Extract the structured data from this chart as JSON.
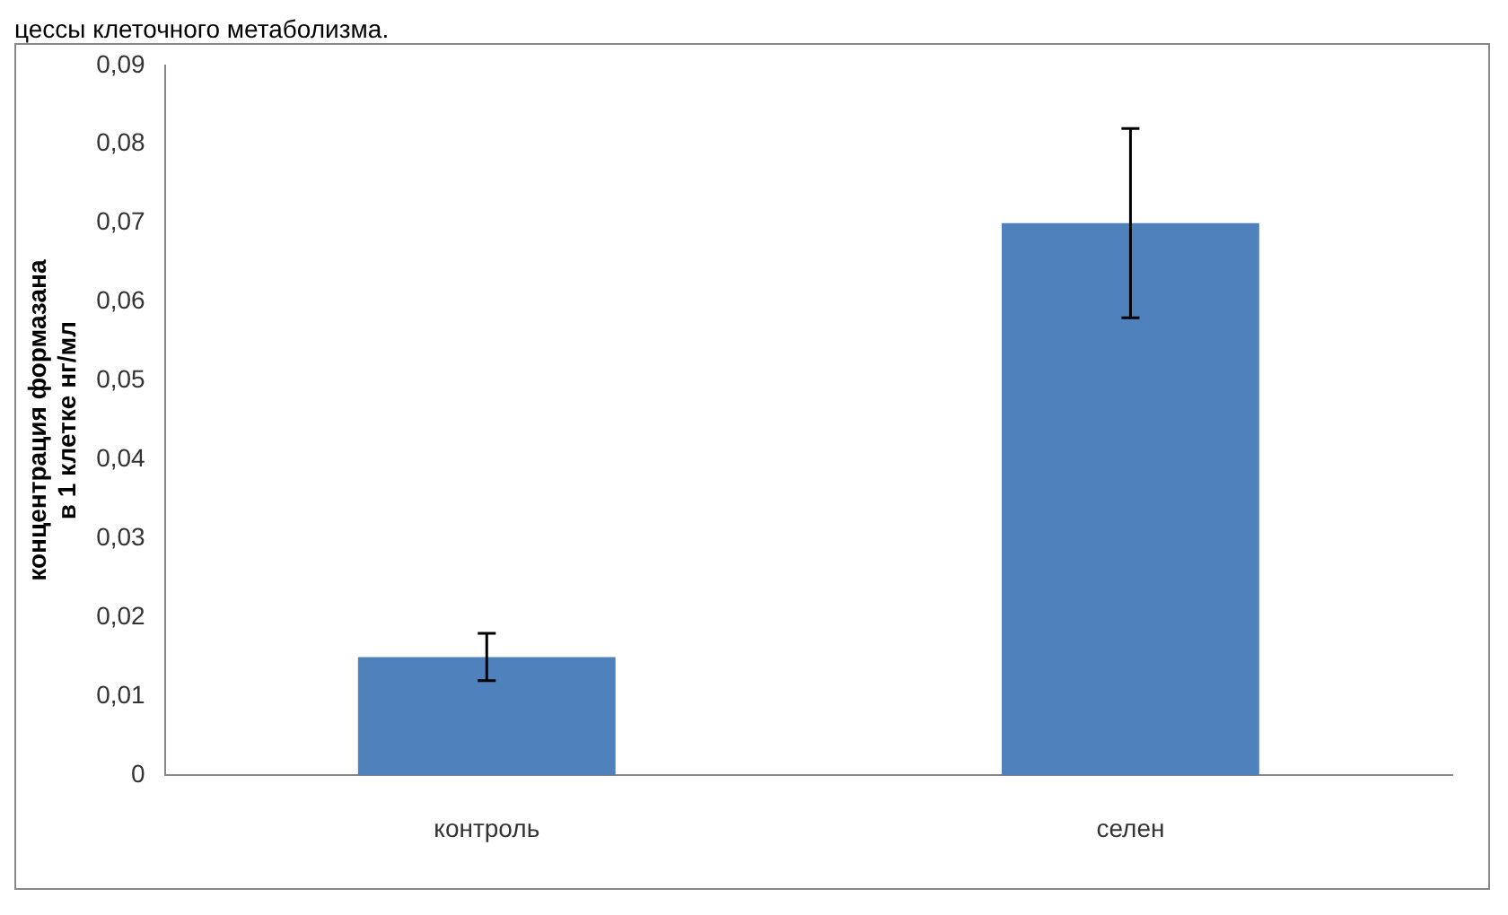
{
  "chart_data": {
    "type": "bar",
    "ylabel": "концентрация формазана в 1 клетке нг/мл",
    "annotations": [
      "цессы клеточного метаболизма."
    ],
    "categories": [
      "контроль",
      "селен"
    ],
    "values": [
      0.015,
      0.07
    ],
    "errors": [
      0.003,
      0.012
    ],
    "color": "#4f81bd",
    "ylim": [
      0,
      0.09
    ],
    "yticks": [
      {
        "value": 0,
        "label": "0"
      },
      {
        "value": 0.01,
        "label": "0,01"
      },
      {
        "value": 0.02,
        "label": "0,02"
      },
      {
        "value": 0.03,
        "label": "0,03"
      },
      {
        "value": 0.04,
        "label": "0,04"
      },
      {
        "value": 0.05,
        "label": "0,05"
      },
      {
        "value": 0.06,
        "label": "0,06"
      },
      {
        "value": 0.07,
        "label": "0,07"
      },
      {
        "value": 0.08,
        "label": "0,08"
      },
      {
        "value": 0.09,
        "label": "0,09"
      }
    ],
    "grid": false,
    "legend": false
  }
}
